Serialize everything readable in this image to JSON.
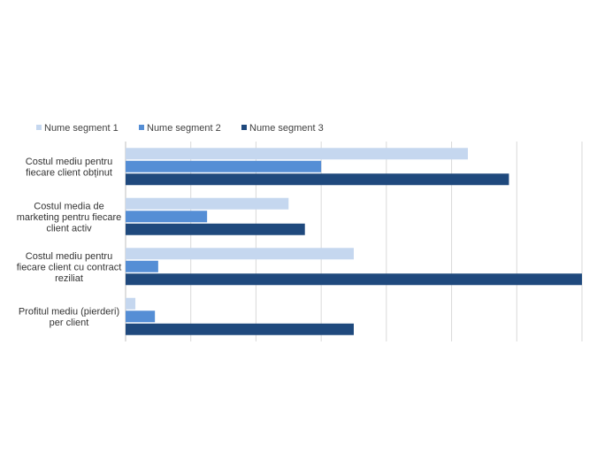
{
  "chart_data": {
    "type": "bar",
    "orientation": "horizontal",
    "title": "",
    "xlabel": "",
    "ylabel": "",
    "legend_position": "top-left",
    "grid": true,
    "xlim": [
      0,
      7
    ],
    "categories": [
      [
        "Costul mediu pentru",
        "fiecare client obținut"
      ],
      [
        "Costul media de",
        "marketing pentru fiecare",
        "client activ"
      ],
      [
        "Costul mediu pentru",
        "fiecare client cu contract",
        "reziliat"
      ],
      [
        "Profitul mediu (pierderi)",
        "per client"
      ]
    ],
    "series": [
      {
        "name": "Nume segment 1",
        "color": "#c5d7ef",
        "values": [
          5.25,
          2.5,
          3.5,
          0.15
        ]
      },
      {
        "name": "Nume segment 2",
        "color": "#558ed5",
        "values": [
          3.0,
          1.25,
          0.5,
          0.45
        ]
      },
      {
        "name": "Nume segment 3",
        "color": "#1f497d",
        "values": [
          5.88,
          2.75,
          7.0,
          3.5
        ]
      }
    ]
  }
}
